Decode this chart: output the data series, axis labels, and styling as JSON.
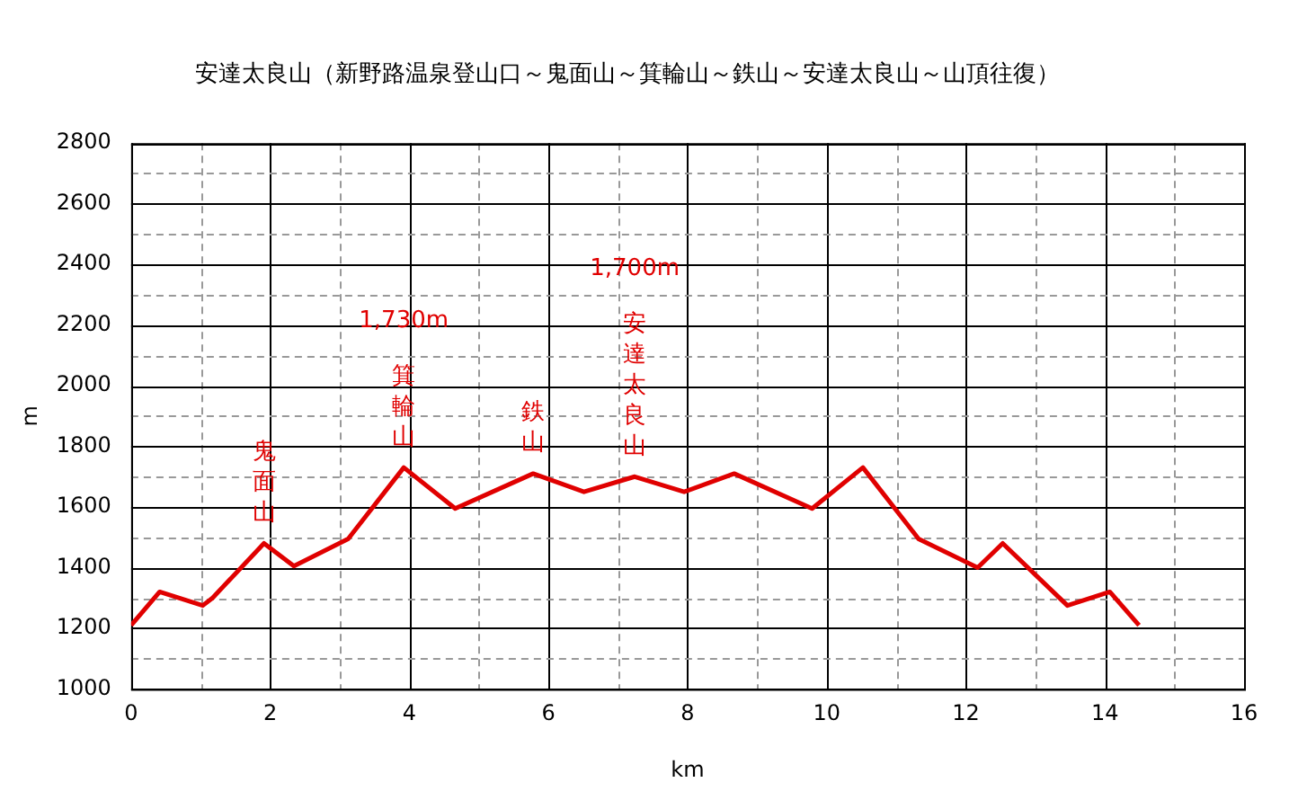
{
  "chart_data": {
    "type": "line",
    "title": "安達太良山（新野路温泉登山口～鬼面山～箕輪山～鉄山～安達太良山～山頂往復）",
    "xlabel": "km",
    "ylabel": "m",
    "series": [
      {
        "color": "#e00000",
        "x": [
          0,
          0.41,
          1.03,
          1.17,
          1.91,
          2.34,
          3.12,
          3.92,
          4.66,
          5.78,
          6.51,
          7.24,
          7.95,
          8.67,
          9.79,
          10.52,
          11.32,
          12.17,
          12.53,
          13.46,
          14.07,
          14.49
        ],
        "values": [
          1210,
          1320,
          1275,
          1300,
          1480,
          1405,
          1495,
          1730,
          1595,
          1710,
          1650,
          1700,
          1650,
          1710,
          1595,
          1730,
          1495,
          1400,
          1480,
          1275,
          1320,
          1210
        ]
      }
    ],
    "xlim": [
      0,
      16
    ],
    "xticks": [
      0,
      {
        "value": 1,
        "label": null
      },
      2,
      {
        "value": 3,
        "label": null
      },
      4,
      {
        "value": 5,
        "label": null
      },
      6,
      {
        "value": 7,
        "label": null
      },
      8,
      {
        "value": 9,
        "label": null
      },
      10,
      {
        "value": 11,
        "label": null
      },
      12,
      {
        "value": 13,
        "label": null
      },
      14,
      {
        "value": 15,
        "label": null
      },
      16
    ],
    "ylim": [
      1000,
      2800
    ],
    "yticks": [
      1000,
      {
        "value": 1100,
        "label": null
      },
      1200,
      {
        "value": 1300,
        "label": null
      },
      1400,
      {
        "value": 1500,
        "label": null
      },
      1600,
      {
        "value": 1700,
        "label": null
      },
      1800,
      {
        "value": 1900,
        "label": null
      },
      2000,
      {
        "value": 2100,
        "label": null
      },
      2200,
      {
        "value": 2300,
        "label": null
      },
      2400,
      {
        "value": 2500,
        "label": null
      },
      2600,
      {
        "value": 2700,
        "label": null
      },
      2800
    ],
    "grid": true,
    "legend": false,
    "marker": "none",
    "line_style": "solid",
    "annotations": [
      {
        "text": "鬼面山",
        "x": 1.91,
        "y": 1480
      },
      {
        "text": "箕輪山",
        "x": 3.92,
        "y": 1730
      },
      "1,730m",
      {
        "text": "鉄山",
        "x": 5.78,
        "y": 1710
      },
      {
        "text": "安達太良山",
        "x": 7.24,
        "y": 1700
      },
      "1,700m"
    ]
  }
}
